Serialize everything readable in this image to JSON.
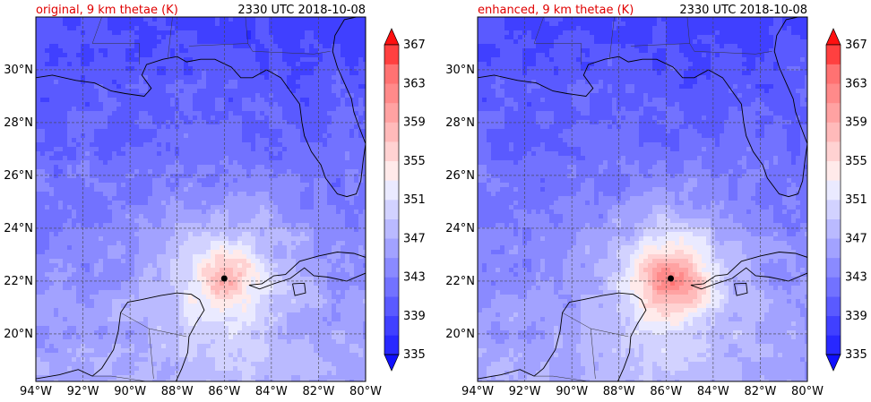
{
  "panels": [
    {
      "title": "original, 9 km thetae (K)",
      "time": "2330 UTC 2018-10-08",
      "storm_center": {
        "lon": -86.0,
        "lat": 22.1
      },
      "warm_core_strength": 0.55
    },
    {
      "title": "enhanced, 9 km thetae (K)",
      "time": "2330 UTC 2018-10-08",
      "storm_center": {
        "lon": -85.8,
        "lat": 22.1
      },
      "warm_core_strength": 1.0
    }
  ],
  "map": {
    "lon_range": [
      -94,
      -80
    ],
    "lat_range": [
      18.2,
      32.0
    ],
    "lon_ticks": [
      -94,
      -92,
      -90,
      -88,
      -86,
      -84,
      -82,
      -80
    ],
    "lon_tick_labels": [
      "94°W",
      "92°W",
      "90°W",
      "88°W",
      "86°W",
      "84°W",
      "82°W",
      "80°W"
    ],
    "lat_ticks": [
      20,
      22,
      24,
      26,
      28,
      30
    ],
    "lat_tick_labels": [
      "20°N",
      "22°N",
      "24°N",
      "26°N",
      "28°N",
      "30°N"
    ],
    "gridlines": true
  },
  "colorbar": {
    "tick_labels": [
      "335",
      "339",
      "343",
      "347",
      "351",
      "355",
      "359",
      "363",
      "367"
    ],
    "min": 333,
    "max": 369,
    "levels": 18,
    "colors": [
      "#1010ff",
      "#2828ff",
      "#4040ff",
      "#5a5aff",
      "#7272ff",
      "#8a8aff",
      "#a2a2ff",
      "#babaff",
      "#d2d2ff",
      "#eaeaff",
      "#ffeaea",
      "#ffd2d2",
      "#ffbaba",
      "#ffa2a2",
      "#ff8a8a",
      "#ff7272",
      "#ff4040",
      "#ff1010"
    ],
    "extend": "both"
  }
}
